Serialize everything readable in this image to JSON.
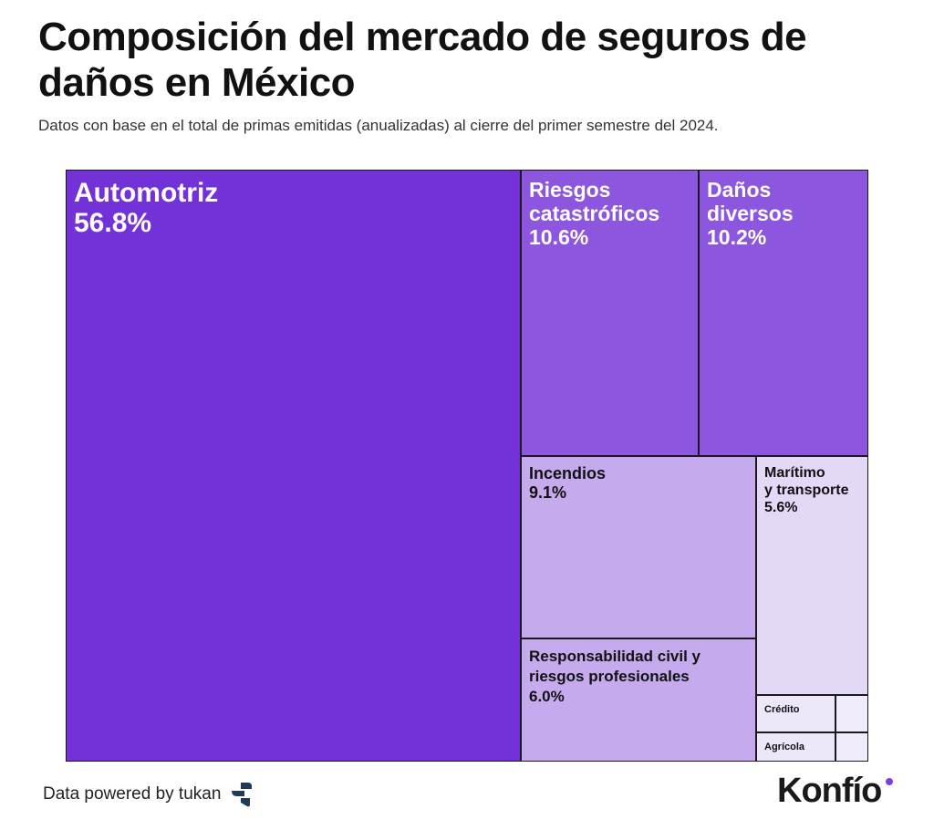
{
  "title": "Composición del mercado de seguros de daños en México",
  "subtitle": "Datos con base en el total de primas emitidas (anualizadas) al cierre del primer semestre del 2024.",
  "chart_data": {
    "type": "treemap",
    "unit": "%",
    "items": [
      {
        "name": "Automotriz",
        "value": 56.8,
        "value_label": "56.8%",
        "color": "#7232d8"
      },
      {
        "name": "Riesgos catastróficos",
        "value": 10.6,
        "value_label": "10.6%",
        "color": "#8c56de"
      },
      {
        "name": "Daños diversos",
        "value": 10.2,
        "value_label": "10.2%",
        "color": "#8c56de"
      },
      {
        "name": "Incendios",
        "value": 9.1,
        "value_label": "9.1%",
        "color": "#c6aaee"
      },
      {
        "name": "Responsabilidad civil y riesgos profesionales",
        "value": 6.0,
        "value_label": "6.0%",
        "color": "#c6aaee"
      },
      {
        "name": "Marítimo y transporte",
        "value": 5.6,
        "value_label": "5.6%",
        "color": "#e4d8f7"
      },
      {
        "name": "Crédito",
        "value": null,
        "value_label": "",
        "color": "#eee7fa"
      },
      {
        "name": "Agrícola",
        "value": null,
        "value_label": "",
        "color": "#eee7fa"
      },
      {
        "name": "",
        "value": null,
        "value_label": "",
        "color": "#f1ecfb"
      },
      {
        "name": "",
        "value": null,
        "value_label": "",
        "color": "#f1ecfb"
      }
    ]
  },
  "footer": {
    "source": "Data powered by tukan",
    "source_logo_icon": "tukan-logo-icon",
    "brand": "Konfío",
    "brand_accent_color": "#7a3fe0"
  }
}
